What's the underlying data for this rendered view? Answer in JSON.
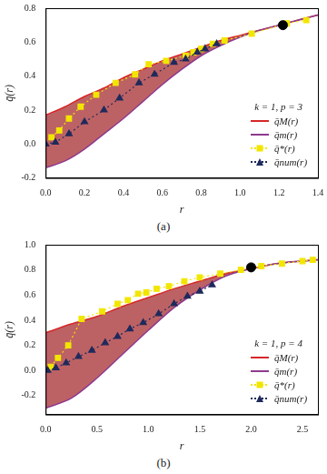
{
  "chart_data": [
    {
      "type": "line",
      "caption": "(a)",
      "legend_title": "k = 1, p = 3",
      "x_label": "r",
      "y_label": "q̄(r)",
      "xlim": [
        0,
        1.4
      ],
      "xticks": [
        {
          "value": 0,
          "label": "0.0"
        },
        0.2,
        0.4,
        0.6,
        0.8,
        {
          "value": 1,
          "label": "1.0"
        },
        1.2,
        1.4
      ],
      "ylim": [
        -0.2,
        0.8
      ],
      "yticks": [
        -0.2,
        {
          "value": 0,
          "label": "0.0"
        },
        0.2,
        0.4,
        0.6,
        0.8
      ],
      "grid": false,
      "legend": "lower right",
      "series": [
        {
          "name": "q̄M(r)",
          "color": "#d62728",
          "marker": "none",
          "line_style": "solid",
          "x": [
            0,
            0.1,
            0.2,
            0.3,
            0.4,
            0.5,
            0.6,
            0.7,
            0.8,
            0.9,
            1.0,
            1.1,
            1.2,
            1.3,
            1.4
          ],
          "values": [
            0.17,
            0.22,
            0.28,
            0.33,
            0.39,
            0.44,
            0.49,
            0.53,
            0.57,
            0.61,
            0.64,
            0.67,
            0.7,
            0.73,
            0.76
          ]
        },
        {
          "name": "q̄m(r)",
          "color": "#8e3a8e",
          "marker": "none",
          "line_style": "solid",
          "x": [
            0,
            0.1,
            0.2,
            0.3,
            0.4,
            0.5,
            0.6,
            0.7,
            0.8,
            0.9,
            1.0,
            1.1,
            1.2,
            1.3,
            1.4
          ],
          "values": [
            -0.14,
            -0.1,
            -0.03,
            0.06,
            0.15,
            0.25,
            0.35,
            0.44,
            0.52,
            0.58,
            0.63,
            0.67,
            0.7,
            0.73,
            0.76
          ]
        },
        {
          "name": "q̄*(r)",
          "color": "#f2e600",
          "marker": "square",
          "line_style": "dotted",
          "x": [
            0.03,
            0.07,
            0.12,
            0.18,
            0.26,
            0.36,
            0.46,
            0.53,
            0.62,
            0.72,
            0.76,
            0.8,
            0.86,
            0.92,
            1.06,
            1.24,
            1.34
          ],
          "values": [
            0.04,
            0.08,
            0.15,
            0.22,
            0.29,
            0.36,
            0.41,
            0.47,
            0.49,
            0.52,
            0.54,
            0.56,
            0.59,
            0.61,
            0.65,
            0.71,
            0.73
          ]
        },
        {
          "name": "q̄num(r)",
          "color": "#1f2a5c",
          "marker": "triangle",
          "line_style": "dotted",
          "x": [
            0.0,
            0.05,
            0.12,
            0.2,
            0.3,
            0.38,
            0.48,
            0.56,
            0.66,
            0.72,
            0.78,
            0.82,
            0.88
          ],
          "values": [
            0.0,
            0.01,
            0.06,
            0.13,
            0.2,
            0.27,
            0.36,
            0.41,
            0.48,
            0.5,
            0.54,
            0.56,
            0.59
          ]
        }
      ],
      "marked_point": {
        "x": 1.22,
        "y": 0.7,
        "color": "#000000"
      }
    },
    {
      "type": "line",
      "caption": "(b)",
      "legend_title": "k = 1, p = 4",
      "x_label": "r",
      "y_label": "q̄(r)",
      "xlim": [
        0,
        2.65
      ],
      "xticks": [
        {
          "value": 0,
          "label": "0.0"
        },
        0.5,
        {
          "value": 1,
          "label": "1.0"
        },
        1.5,
        {
          "value": 2,
          "label": "2.0"
        },
        2.5
      ],
      "ylim": [
        -0.35,
        1.0
      ],
      "yticks": [
        -0.2,
        {
          "value": 0,
          "label": "0.0"
        },
        0.2,
        0.4,
        0.6,
        0.8,
        {
          "value": 1,
          "label": "1.0"
        }
      ],
      "grid": false,
      "legend": "lower right",
      "series": [
        {
          "name": "q̄M(r)",
          "color": "#d62728",
          "marker": "none",
          "line_style": "solid",
          "x": [
            0,
            0.25,
            0.5,
            0.75,
            1.0,
            1.25,
            1.5,
            1.75,
            2.0,
            2.25,
            2.5,
            2.65
          ],
          "values": [
            0.3,
            0.37,
            0.43,
            0.51,
            0.58,
            0.65,
            0.71,
            0.77,
            0.81,
            0.85,
            0.87,
            0.88
          ]
        },
        {
          "name": "q̄m(r)",
          "color": "#8e3a8e",
          "marker": "none",
          "line_style": "solid",
          "x": [
            0,
            0.25,
            0.5,
            0.75,
            1.0,
            1.25,
            1.5,
            1.75,
            2.0,
            2.25,
            2.5,
            2.65
          ],
          "values": [
            -0.3,
            -0.22,
            -0.06,
            0.13,
            0.32,
            0.5,
            0.64,
            0.75,
            0.81,
            0.85,
            0.87,
            0.88
          ]
        },
        {
          "name": "q̄*(r)",
          "color": "#f2e600",
          "marker": "square",
          "line_style": "dotted",
          "x": [
            0.05,
            0.12,
            0.22,
            0.35,
            0.55,
            0.7,
            0.8,
            0.9,
            0.98,
            1.08,
            1.2,
            1.35,
            1.5,
            1.7,
            1.9,
            2.1,
            2.3,
            2.5,
            2.6
          ],
          "values": [
            0.03,
            0.1,
            0.2,
            0.41,
            0.47,
            0.53,
            0.56,
            0.61,
            0.62,
            0.65,
            0.67,
            0.71,
            0.74,
            0.77,
            0.8,
            0.83,
            0.85,
            0.87,
            0.88
          ]
        },
        {
          "name": "q̄num(r)",
          "color": "#1f2a5c",
          "marker": "triangle",
          "line_style": "dotted",
          "x": [
            0.02,
            0.1,
            0.2,
            0.32,
            0.45,
            0.58,
            0.7,
            0.82,
            0.95,
            1.1,
            1.25,
            1.38,
            1.5,
            1.62
          ],
          "values": [
            0.0,
            0.02,
            0.06,
            0.11,
            0.16,
            0.22,
            0.27,
            0.33,
            0.38,
            0.45,
            0.53,
            0.59,
            0.63,
            0.68
          ]
        }
      ],
      "marked_point": {
        "x": 2.0,
        "y": 0.82,
        "color": "#000000"
      }
    }
  ]
}
